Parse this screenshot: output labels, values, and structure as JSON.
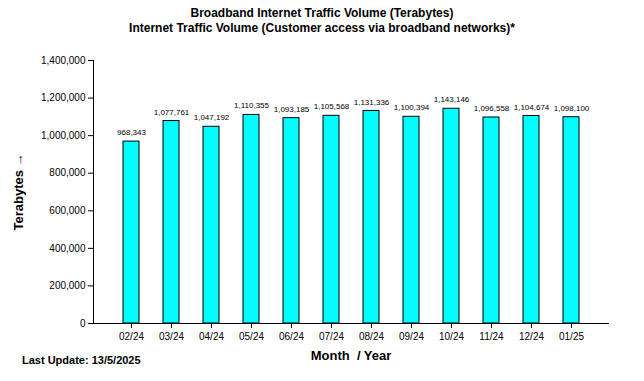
{
  "chart_data": {
    "type": "bar",
    "title": "Broadband  Internet Traffic Volume (Terabytes)",
    "subtitle": "Internet Traffic Volume (Customer access via broadband networks)*",
    "x_label": "Month  / Year",
    "y_label": "Terabytes",
    "footer": "Last Update: 13/5/2025",
    "categories": [
      "02/24",
      "03/24",
      "04/24",
      "05/24",
      "06/24",
      "07/24",
      "08/24",
      "09/24",
      "10/24",
      "11/24",
      "12/24",
      "01/25"
    ],
    "values": [
      968343,
      1077761,
      1047192,
      1110355,
      1093185,
      1105568,
      1131336,
      1100394,
      1143146,
      1096558,
      1104674,
      1098100
    ],
    "value_labels": [
      "968,343",
      "1,077,761",
      "1,047,192",
      "1,110,355",
      "1,093,185",
      "1,105,568",
      "1,131,336",
      "1,100,394",
      "1,143,146",
      "1,096,558",
      "1,104,674",
      "1,098,100"
    ],
    "data_labels": true,
    "color": "#00ffff",
    "grid": false,
    "ylim": [
      0,
      1400000
    ],
    "yticks": [
      {
        "value": 0,
        "label": "0"
      },
      {
        "value": 200000,
        "label": "200,000"
      },
      {
        "value": 400000,
        "label": "400,000"
      },
      {
        "value": 600000,
        "label": "600,000"
      },
      {
        "value": 800000,
        "label": "800,000"
      },
      {
        "value": 1000000,
        "label": "1,000,000"
      },
      {
        "value": 1200000,
        "label": "1,200,000"
      },
      {
        "value": 1400000,
        "label": "1,400,000"
      }
    ]
  }
}
